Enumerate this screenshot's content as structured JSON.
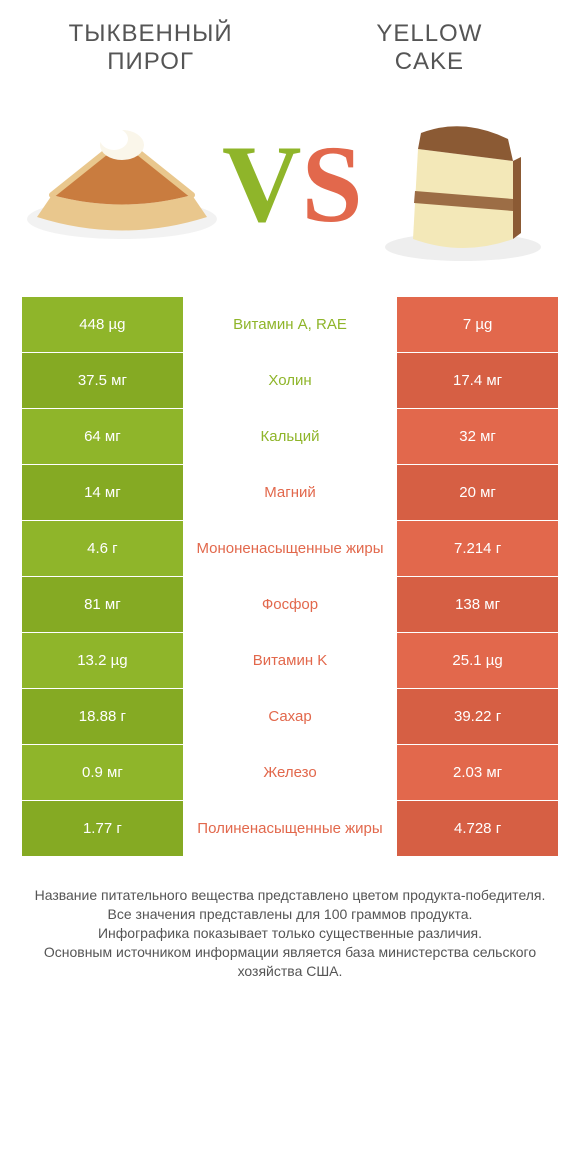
{
  "colors": {
    "green": "#8fb52a",
    "orange": "#e2684c",
    "green_dark": "#85aa23",
    "orange_dark": "#d65f44",
    "text": "#555555",
    "white": "#ffffff",
    "pie_crust": "#e9c78d",
    "pie_filling": "#c97c3f",
    "cream": "#faf6ea",
    "cake_top": "#8b5a34",
    "cake_body": "#f3e8b8",
    "cake_layer": "#9c6d45"
  },
  "title_left": "ТЫКВЕННЫЙ\nПИРОГ",
  "title_right": "YELLOW\nCAKE",
  "vs_v": "V",
  "vs_s": "S",
  "rows": [
    {
      "left": "448 µg",
      "mid": "Витамин A, RAE",
      "right": "7 µg",
      "mid_color": "green"
    },
    {
      "left": "37.5 мг",
      "mid": "Холин",
      "right": "17.4 мг",
      "mid_color": "green"
    },
    {
      "left": "64 мг",
      "mid": "Кальций",
      "right": "32 мг",
      "mid_color": "green"
    },
    {
      "left": "14 мг",
      "mid": "Магний",
      "right": "20 мг",
      "mid_color": "orange"
    },
    {
      "left": "4.6 г",
      "mid": "Мононенасыщенные жиры",
      "right": "7.214 г",
      "mid_color": "orange"
    },
    {
      "left": "81 мг",
      "mid": "Фосфор",
      "right": "138 мг",
      "mid_color": "orange"
    },
    {
      "left": "13.2 µg",
      "mid": "Витамин K",
      "right": "25.1 µg",
      "mid_color": "orange"
    },
    {
      "left": "18.88 г",
      "mid": "Сахар",
      "right": "39.22 г",
      "mid_color": "orange"
    },
    {
      "left": "0.9 мг",
      "mid": "Железо",
      "right": "2.03 мг",
      "mid_color": "orange"
    },
    {
      "left": "1.77 г",
      "mid": "Полиненасыщенные жиры",
      "right": "4.728 г",
      "mid_color": "orange"
    }
  ],
  "footer": [
    "Название питательного вещества представлено цветом продукта-победителя.",
    "Все значения представлены для 100 граммов продукта.",
    "Инфографика показывает только существенные различия.",
    "Основным источником информации является база министерства сельского хозяйства США."
  ]
}
